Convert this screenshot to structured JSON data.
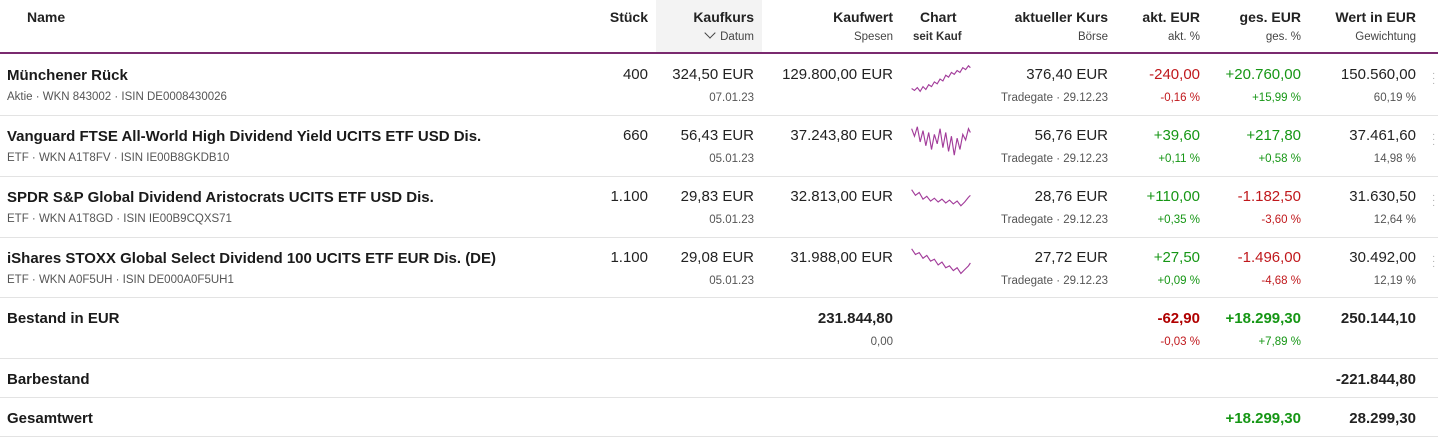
{
  "header": {
    "name": "Name",
    "stueck": "Stück",
    "kaufkurs": "Kaufkurs",
    "datum": "Datum",
    "kaufwert": "Kaufwert",
    "spesen": "Spesen",
    "chart": "Chart",
    "seit_kauf": "seit Kauf",
    "aktueller_kurs": "aktueller Kurs",
    "boerse": "Börse",
    "akt_eur": "akt. EUR",
    "akt_pct": "akt. %",
    "ges_eur": "ges. EUR",
    "ges_pct": "ges. %",
    "wert_eur": "Wert in EUR",
    "gewichtung": "Gewichtung",
    "sort_icon": "chevron-down-icon"
  },
  "positions": [
    {
      "name": "Münchener Rück",
      "meta": "Aktie · WKN 843002 · ISIN DE0008430026",
      "stueck": "400",
      "kaufkurs": "324,50 EUR",
      "datum": "07.01.23",
      "kaufwert": "129.800,00 EUR",
      "kurs": "376,40 EUR",
      "boerse": "Tradegate · 29.12.23",
      "akt_eur": "-240,00",
      "akt_pct": "-0,16 %",
      "ges_eur": "+20.760,00",
      "ges_pct": "+15,99 %",
      "wert": "150.560,00",
      "gewichtung": "60,19 %"
    },
    {
      "name": "Vanguard FTSE All-World High Dividend Yield UCITS ETF USD Dis.",
      "meta": "ETF · WKN A1T8FV · ISIN IE00B8GKDB10",
      "stueck": "660",
      "kaufkurs": "56,43 EUR",
      "datum": "05.01.23",
      "kaufwert": "37.243,80 EUR",
      "kurs": "56,76 EUR",
      "boerse": "Tradegate · 29.12.23",
      "akt_eur": "+39,60",
      "akt_pct": "+0,11 %",
      "ges_eur": "+217,80",
      "ges_pct": "+0,58 %",
      "wert": "37.461,60",
      "gewichtung": "14,98 %"
    },
    {
      "name": "SPDR S&P Global Dividend Aristocrats UCITS ETF USD Dis.",
      "meta": "ETF · WKN A1T8GD · ISIN IE00B9CQXS71",
      "stueck": "1.100",
      "kaufkurs": "29,83 EUR",
      "datum": "05.01.23",
      "kaufwert": "32.813,00 EUR",
      "kurs": "28,76 EUR",
      "boerse": "Tradegate · 29.12.23",
      "akt_eur": "+110,00",
      "akt_pct": "+0,35 %",
      "ges_eur": "-1.182,50",
      "ges_pct": "-3,60 %",
      "wert": "31.630,50",
      "gewichtung": "12,64 %"
    },
    {
      "name": "iShares STOXX Global Select Dividend 100 UCITS ETF EUR Dis. (DE)",
      "meta": "ETF · WKN A0F5UH · ISIN DE000A0F5UH1",
      "stueck": "1.100",
      "kaufkurs": "29,08 EUR",
      "datum": "05.01.23",
      "kaufwert": "31.988,00 EUR",
      "kurs": "27,72 EUR",
      "boerse": "Tradegate · 29.12.23",
      "akt_eur": "+27,50",
      "akt_pct": "+0,09 %",
      "ges_eur": "-1.496,00",
      "ges_pct": "-4,68 %",
      "wert": "30.492,00",
      "gewichtung": "12,19 %"
    }
  ],
  "bestand": {
    "label": "Bestand in EUR",
    "kaufwert": "231.844,80",
    "spesen": "0,00",
    "akt_eur": "-62,90",
    "akt_pct": "-0,03 %",
    "ges_eur": "+18.299,30",
    "ges_pct": "+7,89 %",
    "wert": "250.144,10"
  },
  "barbestand": {
    "label": "Barbestand",
    "wert": "-221.844,80"
  },
  "gesamt": {
    "label": "Gesamtwert",
    "ges_eur": "+18.299,30",
    "wert": "28.299,30"
  },
  "colors": {
    "accent": "#7a2a6f",
    "sparkline": "#a23c9a",
    "positive": "#169615",
    "negative": "#c0181c"
  }
}
